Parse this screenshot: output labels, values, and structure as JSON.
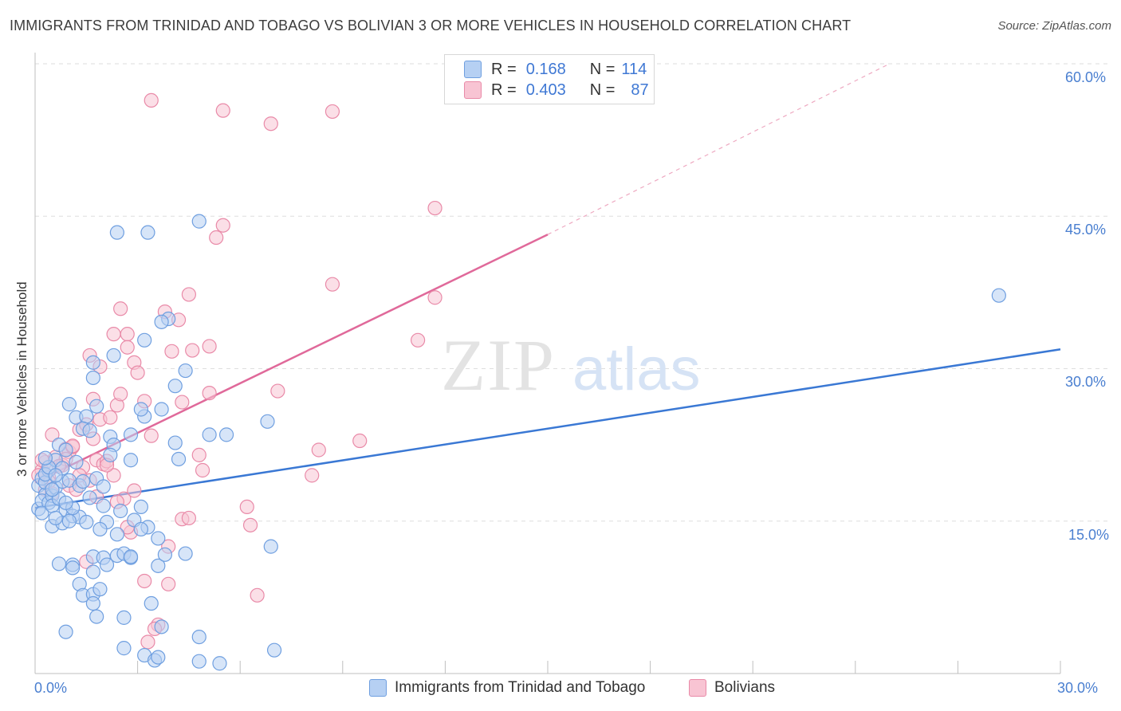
{
  "header": {
    "title": "IMMIGRANTS FROM TRINIDAD AND TOBAGO VS BOLIVIAN 3 OR MORE VEHICLES IN HOUSEHOLD CORRELATION CHART",
    "source": "Source: ZipAtlas.com"
  },
  "legend": {
    "r_label": "R =",
    "n_label": "N =",
    "blue": {
      "r": "0.168",
      "n": "114"
    },
    "pink": {
      "r": "0.403",
      "n": "87"
    }
  },
  "watermark": {
    "zip": "ZIP",
    "atlas": "atlas"
  },
  "colors": {
    "blue_fill": "#b6d0f3",
    "blue_stroke": "#6f9fe0",
    "blue_line": "#3a78d4",
    "pink_fill": "#f8c4d3",
    "pink_stroke": "#e98aa8",
    "pink_line": "#e0699a",
    "grid": "#dedede",
    "tick_text": "#4a7fd0"
  },
  "chart_data": {
    "type": "scatter",
    "title": "IMMIGRANTS FROM TRINIDAD AND TOBAGO VS BOLIVIAN 3 OR MORE VEHICLES IN HOUSEHOLD CORRELATION CHART",
    "xlabel": "",
    "ylabel": "3 or more Vehicles in Household",
    "xlim": [
      0,
      30
    ],
    "ylim": [
      0,
      60
    ],
    "x_tick_labels": [
      "0.0%",
      "30.0%"
    ],
    "y_ticks": [
      15,
      30,
      45,
      60
    ],
    "y_tick_labels": [
      "15.0%",
      "30.0%",
      "45.0%",
      "60.0%"
    ],
    "grid": true,
    "legend_position": "top-center",
    "series": [
      {
        "name": "Immigrants from Trinidad and Tobago",
        "color": "#3a78d4",
        "r": 0.168,
        "n": 114,
        "trend": {
          "x": [
            0,
            30
          ],
          "y": [
            16.3,
            31.9
          ],
          "dashed_extension": false
        },
        "points": [
          [
            0.1,
            18.5
          ],
          [
            0.2,
            19.2
          ],
          [
            0.3,
            17.6
          ],
          [
            0.1,
            16.2
          ],
          [
            0.2,
            17.0
          ],
          [
            0.3,
            18.8
          ],
          [
            0.4,
            16.8
          ],
          [
            0.5,
            17.5
          ],
          [
            0.6,
            18.3
          ],
          [
            0.4,
            20.0
          ],
          [
            0.2,
            15.8
          ],
          [
            0.5,
            16.5
          ],
          [
            0.7,
            17.2
          ],
          [
            0.8,
            18.9
          ],
          [
            0.9,
            16.1
          ],
          [
            0.3,
            19.6
          ],
          [
            0.6,
            21.0
          ],
          [
            0.7,
            22.5
          ],
          [
            0.8,
            20.2
          ],
          [
            1.0,
            19.0
          ],
          [
            0.5,
            14.5
          ],
          [
            0.8,
            14.8
          ],
          [
            1.1,
            15.5
          ],
          [
            1.3,
            15.4
          ],
          [
            1.5,
            14.9
          ],
          [
            1.1,
            16.3
          ],
          [
            1.3,
            18.5
          ],
          [
            1.6,
            17.3
          ],
          [
            1.4,
            18.9
          ],
          [
            1.8,
            19.2
          ],
          [
            1.0,
            26.5
          ],
          [
            1.2,
            25.2
          ],
          [
            1.5,
            25.3
          ],
          [
            1.4,
            24.1
          ],
          [
            1.8,
            26.3
          ],
          [
            1.7,
            29.1
          ],
          [
            1.7,
            30.6
          ],
          [
            2.3,
            31.3
          ],
          [
            2.2,
            23.3
          ],
          [
            2.3,
            22.5
          ],
          [
            2.0,
            16.5
          ],
          [
            2.1,
            14.9
          ],
          [
            1.7,
            11.5
          ],
          [
            2.0,
            11.4
          ],
          [
            2.1,
            10.7
          ],
          [
            2.4,
            11.6
          ],
          [
            2.6,
            11.8
          ],
          [
            2.8,
            11.4
          ],
          [
            2.9,
            15.1
          ],
          [
            3.1,
            16.4
          ],
          [
            0.7,
            10.8
          ],
          [
            1.1,
            10.7
          ],
          [
            1.7,
            10.0
          ],
          [
            1.3,
            8.8
          ],
          [
            1.4,
            7.7
          ],
          [
            1.7,
            7.8
          ],
          [
            1.9,
            8.3
          ],
          [
            1.7,
            6.9
          ],
          [
            1.8,
            5.6
          ],
          [
            2.6,
            5.5
          ],
          [
            0.9,
            4.1
          ],
          [
            2.6,
            2.5
          ],
          [
            3.2,
            1.8
          ],
          [
            3.5,
            1.3
          ],
          [
            3.6,
            1.6
          ],
          [
            3.4,
            6.9
          ],
          [
            3.7,
            4.6
          ],
          [
            3.6,
            10.6
          ],
          [
            3.8,
            11.7
          ],
          [
            4.4,
            11.8
          ],
          [
            3.6,
            13.3
          ],
          [
            3.3,
            14.4
          ],
          [
            3.1,
            14.2
          ],
          [
            2.8,
            21.0
          ],
          [
            2.8,
            23.5
          ],
          [
            3.2,
            25.3
          ],
          [
            3.1,
            26.0
          ],
          [
            3.7,
            26.0
          ],
          [
            4.1,
            22.7
          ],
          [
            4.2,
            21.1
          ],
          [
            4.1,
            28.3
          ],
          [
            4.4,
            29.8
          ],
          [
            3.9,
            34.9
          ],
          [
            3.7,
            34.6
          ],
          [
            3.2,
            32.8
          ],
          [
            2.4,
            43.4
          ],
          [
            3.3,
            43.4
          ],
          [
            4.8,
            44.5
          ],
          [
            5.1,
            23.5
          ],
          [
            5.6,
            23.5
          ],
          [
            6.8,
            24.8
          ],
          [
            6.9,
            12.5
          ],
          [
            7.0,
            2.3
          ],
          [
            4.8,
            3.6
          ],
          [
            4.8,
            1.2
          ],
          [
            5.4,
            1.0
          ],
          [
            2.4,
            13.7
          ],
          [
            2.8,
            11.5
          ],
          [
            1.1,
            10.4
          ],
          [
            0.9,
            16.8
          ],
          [
            0.4,
            20.3
          ],
          [
            0.6,
            19.5
          ],
          [
            0.3,
            21.2
          ],
          [
            1.2,
            20.8
          ],
          [
            1.0,
            15.0
          ],
          [
            0.5,
            18.1
          ],
          [
            0.6,
            15.3
          ],
          [
            1.9,
            14.2
          ],
          [
            2.5,
            16.0
          ],
          [
            2.0,
            18.4
          ],
          [
            1.6,
            23.9
          ],
          [
            2.2,
            21.5
          ],
          [
            28.2,
            37.2
          ],
          [
            0.9,
            22.0
          ]
        ]
      },
      {
        "name": "Bolivians",
        "color": "#e0699a",
        "r": 0.403,
        "n": 87,
        "trend": {
          "x": [
            0,
            15
          ],
          "y": [
            18.8,
            43.2
          ],
          "dashed_extension": true,
          "extension_to": [
            25,
            60
          ]
        },
        "points": [
          [
            0.2,
            20.0
          ],
          [
            0.3,
            20.8
          ],
          [
            0.4,
            19.3
          ],
          [
            0.6,
            21.3
          ],
          [
            0.5,
            23.5
          ],
          [
            0.8,
            20.5
          ],
          [
            0.9,
            22.1
          ],
          [
            1.0,
            21.8
          ],
          [
            1.1,
            22.3
          ],
          [
            1.3,
            24.0
          ],
          [
            1.0,
            18.5
          ],
          [
            1.2,
            18.1
          ],
          [
            1.4,
            20.3
          ],
          [
            1.5,
            24.5
          ],
          [
            1.7,
            23.1
          ],
          [
            1.8,
            21.0
          ],
          [
            1.6,
            19.0
          ],
          [
            2.0,
            20.6
          ],
          [
            2.1,
            20.9
          ],
          [
            2.3,
            19.5
          ],
          [
            1.7,
            27.0
          ],
          [
            1.9,
            25.0
          ],
          [
            2.2,
            25.2
          ],
          [
            2.4,
            26.4
          ],
          [
            2.5,
            27.5
          ],
          [
            1.6,
            31.3
          ],
          [
            1.9,
            30.2
          ],
          [
            2.3,
            33.4
          ],
          [
            2.5,
            35.9
          ],
          [
            2.7,
            33.4
          ],
          [
            2.7,
            32.1
          ],
          [
            2.9,
            30.6
          ],
          [
            3.0,
            29.6
          ],
          [
            3.2,
            26.8
          ],
          [
            3.4,
            23.4
          ],
          [
            3.8,
            35.6
          ],
          [
            4.0,
            31.7
          ],
          [
            4.2,
            34.8
          ],
          [
            4.3,
            26.7
          ],
          [
            4.5,
            37.3
          ],
          [
            4.6,
            31.8
          ],
          [
            4.8,
            21.5
          ],
          [
            4.9,
            20.0
          ],
          [
            5.1,
            32.2
          ],
          [
            5.1,
            27.6
          ],
          [
            5.3,
            42.9
          ],
          [
            5.5,
            44.1
          ],
          [
            3.4,
            56.4
          ],
          [
            5.5,
            55.4
          ],
          [
            6.9,
            54.1
          ],
          [
            8.7,
            55.3
          ],
          [
            11.7,
            45.8
          ],
          [
            11.7,
            37.0
          ],
          [
            11.2,
            32.8
          ],
          [
            8.7,
            38.3
          ],
          [
            7.1,
            27.8
          ],
          [
            8.3,
            22.0
          ],
          [
            8.1,
            19.5
          ],
          [
            9.5,
            22.9
          ],
          [
            6.2,
            16.4
          ],
          [
            6.3,
            14.6
          ],
          [
            6.5,
            7.7
          ],
          [
            4.3,
            15.2
          ],
          [
            4.5,
            15.3
          ],
          [
            3.9,
            12.5
          ],
          [
            3.9,
            8.8
          ],
          [
            3.2,
            9.1
          ],
          [
            3.6,
            4.8
          ],
          [
            3.3,
            3.1
          ],
          [
            2.8,
            13.9
          ],
          [
            2.7,
            14.4
          ],
          [
            2.6,
            17.2
          ],
          [
            2.9,
            18.0
          ],
          [
            2.1,
            20.5
          ],
          [
            1.8,
            17.4
          ],
          [
            1.5,
            11.0
          ],
          [
            0.9,
            21.1
          ],
          [
            0.7,
            20.4
          ],
          [
            0.3,
            18.1
          ],
          [
            0.4,
            18.9
          ],
          [
            0.5,
            17.7
          ],
          [
            1.3,
            19.5
          ],
          [
            2.4,
            16.9
          ],
          [
            3.5,
            4.4
          ],
          [
            1.1,
            22.4
          ],
          [
            0.1,
            19.5
          ],
          [
            0.2,
            21.0
          ]
        ]
      }
    ]
  },
  "bottom_legend": {
    "blue_label": "Immigrants from Trinidad and Tobago",
    "pink_label": "Bolivians"
  }
}
